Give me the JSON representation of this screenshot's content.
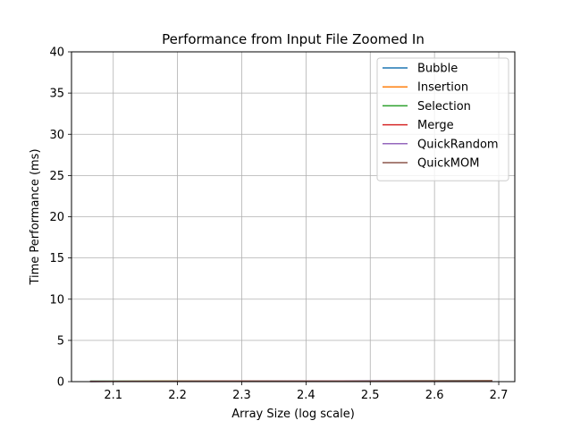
{
  "chart_data": {
    "type": "line",
    "title": "Performance from Input File Zoomed In",
    "xlabel": "Array Size (log scale)",
    "ylabel": "Time Performance (ms)",
    "xlim": [
      2.035,
      2.725
    ],
    "ylim": [
      0,
      40
    ],
    "x_ticks": [
      2.1,
      2.2,
      2.3,
      2.4,
      2.5,
      2.6,
      2.7
    ],
    "x_tick_labels": [
      "2.1",
      "2.2",
      "2.3",
      "2.4",
      "2.5",
      "2.6",
      "2.7"
    ],
    "y_ticks": [
      0,
      5,
      10,
      15,
      20,
      25,
      30,
      35,
      40
    ],
    "y_tick_labels": [
      "0",
      "5",
      "10",
      "15",
      "20",
      "25",
      "30",
      "35",
      "40"
    ],
    "grid": true,
    "legend_position": "top-right",
    "x": [
      2.064,
      2.181,
      2.301,
      2.398,
      2.5,
      2.599,
      2.69
    ],
    "series": [
      {
        "name": "Bubble",
        "color": "#1f77b4",
        "values": [
          0.05,
          0.06,
          0.07,
          0.08,
          0.09,
          0.1,
          0.11
        ]
      },
      {
        "name": "Insertion",
        "color": "#ff7f0e",
        "values": [
          0.04,
          0.05,
          0.06,
          0.07,
          0.08,
          0.09,
          0.1
        ]
      },
      {
        "name": "Selection",
        "color": "#2ca02c",
        "values": [
          0.04,
          0.05,
          0.06,
          0.07,
          0.08,
          0.09,
          0.1
        ]
      },
      {
        "name": "Merge",
        "color": "#d62728",
        "values": [
          0.03,
          0.04,
          0.05,
          0.06,
          0.07,
          0.08,
          0.09
        ]
      },
      {
        "name": "QuickRandom",
        "color": "#9467bd",
        "values": [
          0.02,
          0.03,
          0.04,
          0.05,
          0.06,
          0.07,
          0.08
        ]
      },
      {
        "name": "QuickMOM",
        "color": "#8c564b",
        "values": [
          0.02,
          0.03,
          0.04,
          0.05,
          0.06,
          0.07,
          0.08
        ]
      }
    ]
  }
}
